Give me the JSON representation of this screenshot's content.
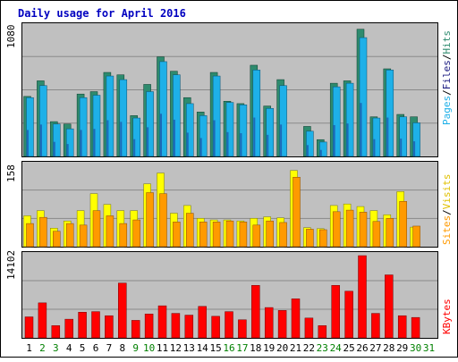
{
  "chart_data": {
    "type": "bar",
    "title": "Daily usage for April 2016",
    "categories": [
      "1",
      "2",
      "3",
      "4",
      "5",
      "6",
      "7",
      "8",
      "9",
      "10",
      "11",
      "12",
      "13",
      "14",
      "15",
      "16",
      "17",
      "18",
      "19",
      "20",
      "21",
      "22",
      "23",
      "24",
      "25",
      "26",
      "27",
      "28",
      "29",
      "30",
      "31"
    ],
    "weekend_days": [
      "2",
      "3",
      "9",
      "10",
      "16",
      "17",
      "23",
      "24",
      "30",
      "31"
    ],
    "panels": [
      {
        "id": "top",
        "ymax_label": "1080",
        "ylim": [
          0,
          1080
        ],
        "side_labels": [
          "Pages",
          "Files",
          "Hits"
        ],
        "series": [
          {
            "name": "Hits",
            "color": "#2e8b6e",
            "values": [
              500,
              630,
              290,
              270,
              520,
              540,
              700,
              680,
              340,
              600,
              830,
              710,
              490,
              370,
              700,
              460,
              440,
              760,
              420,
              640,
              0,
              250,
              140,
              610,
              630,
              1060,
              330,
              730,
              350,
              330,
              0
            ]
          },
          {
            "name": "Files",
            "color": "#1eb0e8",
            "values": [
              490,
              590,
              270,
              230,
              490,
              510,
              670,
              640,
              320,
              540,
              790,
              680,
              440,
              340,
              670,
              450,
              430,
              720,
              400,
              590,
              0,
              210,
              120,
              580,
              610,
              990,
              320,
              720,
              330,
              280,
              0
            ]
          },
          {
            "name": "Pages",
            "color": "#1a1a80",
            "values": [
              0,
              0,
              0,
              0,
              0,
              0,
              0,
              0,
              0,
              0,
              0,
              0,
              0,
              0,
              0,
              0,
              0,
              0,
              0,
              0,
              0,
              0,
              0,
              0,
              0,
              0,
              0,
              0,
              0,
              0,
              0
            ]
          }
        ]
      },
      {
        "id": "middle",
        "ymax_label": "158",
        "ylim": [
          0,
          158
        ],
        "side_labels": [
          "Sites",
          "Visits"
        ],
        "series": [
          {
            "name": "Visits",
            "color": "#ffff00",
            "values": [
              60,
              70,
              36,
              50,
              70,
              103,
              82,
              70,
              70,
              122,
              143,
              65,
              80,
              55,
              52,
              52,
              50,
              55,
              58,
              56,
              148,
              37,
              35,
              80,
              83,
              78,
              70,
              62,
              107,
              38,
              0
            ]
          },
          {
            "name": "Sites",
            "color": "#ff9a00",
            "values": [
              45,
              57,
              30,
              45,
              42,
              70,
              60,
              45,
              52,
              105,
              103,
              48,
              65,
              48,
              48,
              50,
              48,
              42,
              50,
              47,
              135,
              34,
              33,
              68,
              71,
              67,
              49,
              55,
              88,
              40,
              0
            ]
          }
        ]
      },
      {
        "id": "bottom",
        "ymax_label": "14102",
        "ylim": [
          0,
          14102
        ],
        "side_labels": [
          "KBytes"
        ],
        "series": [
          {
            "name": "KBytes",
            "color": "#ff0000",
            "values": [
              3600,
              6000,
              2100,
              3200,
              4400,
              4500,
              3800,
              9400,
              3000,
              4100,
              5500,
              4200,
              3900,
              5400,
              3700,
              4500,
              3100,
              9000,
              5200,
              4700,
              6700,
              3400,
              2100,
              9000,
              8000,
              14100,
              4200,
              10800,
              3800,
              3500,
              0
            ]
          }
        ]
      }
    ]
  }
}
